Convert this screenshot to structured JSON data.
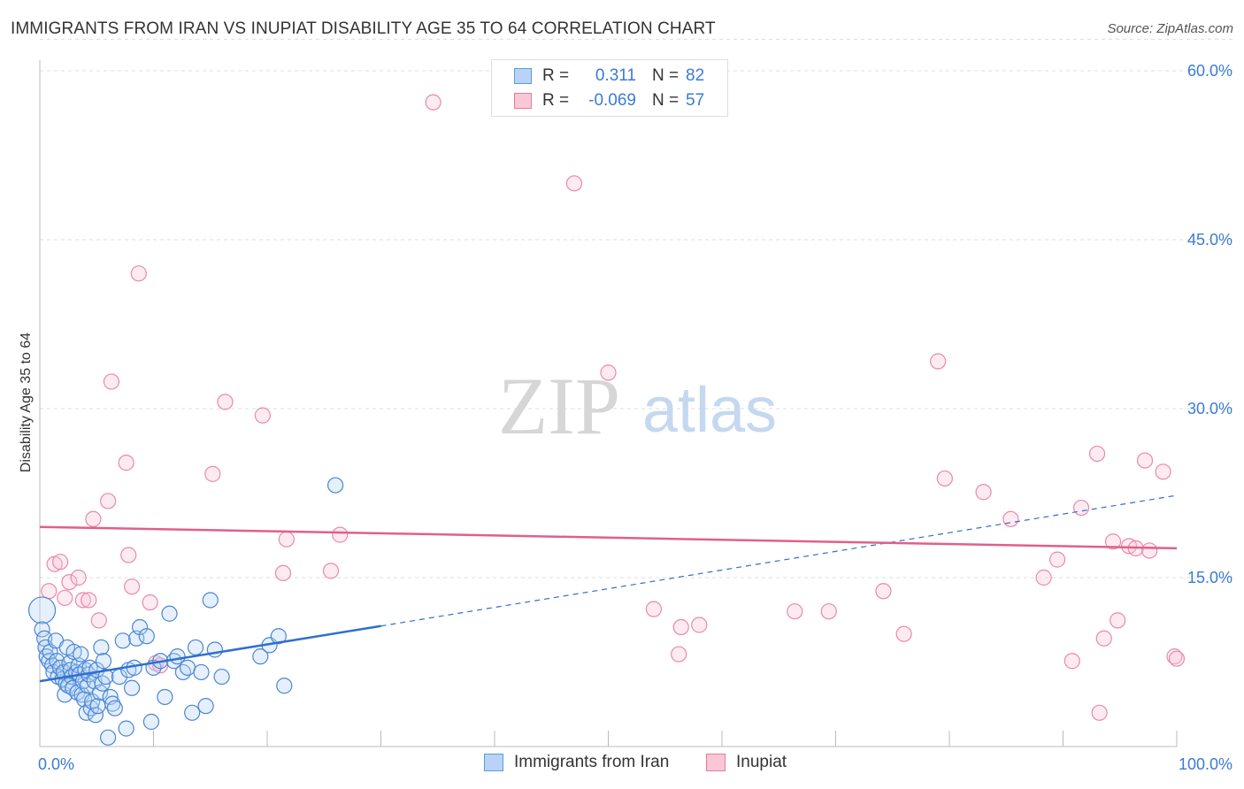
{
  "title": "IMMIGRANTS FROM IRAN VS INUPIAT DISABILITY AGE 35 TO 64 CORRELATION CHART",
  "source": "Source: ZipAtlas.com",
  "watermark": {
    "zip": "ZIP",
    "atlas": "atlas"
  },
  "legend": {
    "r_label": "R =",
    "n_label": "N =",
    "rows": [
      {
        "r": "0.311",
        "n": "82",
        "color": "#5b9be0",
        "fill": "#b8d3f5"
      },
      {
        "r": "-0.069",
        "n": "57",
        "color": "#e87aa0",
        "fill": "#f9c7d6"
      }
    ]
  },
  "colors": {
    "blue": "#4a86d4",
    "blue_line": "#2f6fcf",
    "pink": "#e88aa8",
    "pink_line": "#e0608a",
    "tick_text": "#3a7bd5"
  },
  "chart_data": {
    "type": "scatter",
    "title": "IMMIGRANTS FROM IRAN VS INUPIAT DISABILITY AGE 35 TO 64 CORRELATION CHART",
    "xlabel": "",
    "ylabel": "Disability Age 35 to 64",
    "xlim": [
      0,
      100
    ],
    "ylim": [
      0,
      63
    ],
    "x_tick_labels": [
      "0.0%",
      "100.0%"
    ],
    "y_ticks": [
      15,
      30,
      45,
      60
    ],
    "y_tick_labels": [
      "15.0%",
      "30.0%",
      "45.0%",
      "60.0%"
    ],
    "grid": true,
    "legend_position": "top-center",
    "series": [
      {
        "name": "Immigrants from Iran",
        "r": 0.311,
        "n": 82,
        "trend": {
          "x0": 0,
          "y0": 5.8,
          "x1": 30,
          "y1": 10.7,
          "dashed_to": {
            "x": 100,
            "y": 22.3
          }
        },
        "points": [
          [
            0.2,
            12.1
          ],
          [
            0.2,
            10.4
          ],
          [
            0.4,
            9.6
          ],
          [
            0.5,
            8.8
          ],
          [
            0.6,
            8.0
          ],
          [
            0.8,
            7.6
          ],
          [
            0.9,
            8.4
          ],
          [
            1.1,
            7.2
          ],
          [
            1.2,
            6.6
          ],
          [
            1.4,
            9.4
          ],
          [
            1.5,
            7.6
          ],
          [
            1.6,
            6.2
          ],
          [
            1.8,
            7.0
          ],
          [
            2.0,
            6.0
          ],
          [
            2.1,
            6.6
          ],
          [
            2.2,
            4.6
          ],
          [
            2.3,
            5.6
          ],
          [
            2.4,
            8.8
          ],
          [
            2.5,
            5.4
          ],
          [
            2.6,
            7.4
          ],
          [
            2.7,
            6.8
          ],
          [
            2.8,
            6.2
          ],
          [
            2.9,
            5.2
          ],
          [
            3.0,
            8.4
          ],
          [
            3.2,
            6.6
          ],
          [
            3.3,
            4.8
          ],
          [
            3.4,
            7.2
          ],
          [
            3.5,
            6.4
          ],
          [
            3.6,
            8.2
          ],
          [
            3.7,
            4.6
          ],
          [
            3.8,
            5.8
          ],
          [
            3.9,
            4.2
          ],
          [
            4.0,
            6.8
          ],
          [
            4.1,
            3.0
          ],
          [
            4.2,
            5.4
          ],
          [
            4.3,
            6.4
          ],
          [
            4.4,
            7.0
          ],
          [
            4.5,
            3.4
          ],
          [
            4.6,
            4.0
          ],
          [
            4.8,
            5.8
          ],
          [
            4.9,
            2.8
          ],
          [
            5.0,
            6.8
          ],
          [
            5.1,
            3.6
          ],
          [
            5.3,
            4.8
          ],
          [
            5.4,
            8.8
          ],
          [
            5.5,
            5.6
          ],
          [
            5.6,
            7.6
          ],
          [
            5.8,
            6.2
          ],
          [
            6.0,
            0.8
          ],
          [
            6.2,
            4.4
          ],
          [
            6.4,
            3.8
          ],
          [
            6.6,
            3.4
          ],
          [
            7.0,
            6.2
          ],
          [
            7.3,
            9.4
          ],
          [
            7.6,
            1.6
          ],
          [
            7.8,
            6.8
          ],
          [
            8.1,
            5.2
          ],
          [
            8.3,
            7.0
          ],
          [
            8.5,
            9.6
          ],
          [
            8.8,
            10.6
          ],
          [
            9.4,
            9.8
          ],
          [
            9.8,
            2.2
          ],
          [
            10.0,
            7.0
          ],
          [
            10.6,
            7.6
          ],
          [
            11.0,
            4.4
          ],
          [
            11.4,
            11.8
          ],
          [
            11.8,
            7.6
          ],
          [
            12.1,
            8.0
          ],
          [
            12.6,
            6.6
          ],
          [
            13.0,
            7.0
          ],
          [
            13.4,
            3.0
          ],
          [
            13.7,
            8.8
          ],
          [
            14.2,
            6.6
          ],
          [
            14.6,
            3.6
          ],
          [
            15.4,
            8.6
          ],
          [
            15.0,
            13.0
          ],
          [
            16.0,
            6.2
          ],
          [
            19.4,
            8.0
          ],
          [
            20.2,
            9.0
          ],
          [
            21.0,
            9.8
          ],
          [
            21.5,
            5.4
          ],
          [
            26.0,
            23.2
          ]
        ]
      },
      {
        "name": "Inupiat",
        "r": -0.069,
        "n": 57,
        "trend": {
          "x0": 0,
          "y0": 19.5,
          "x1": 100,
          "y1": 17.6
        },
        "points": [
          [
            0.8,
            13.8
          ],
          [
            1.3,
            16.2
          ],
          [
            1.8,
            16.4
          ],
          [
            2.2,
            13.2
          ],
          [
            2.6,
            14.6
          ],
          [
            3.4,
            15.0
          ],
          [
            3.8,
            13.0
          ],
          [
            4.3,
            13.0
          ],
          [
            4.7,
            20.2
          ],
          [
            5.2,
            11.2
          ],
          [
            6.0,
            21.8
          ],
          [
            6.3,
            32.4
          ],
          [
            7.6,
            25.2
          ],
          [
            7.8,
            17.0
          ],
          [
            8.1,
            14.2
          ],
          [
            8.7,
            42.0
          ],
          [
            9.7,
            12.8
          ],
          [
            10.2,
            7.4
          ],
          [
            10.6,
            7.2
          ],
          [
            15.2,
            24.2
          ],
          [
            16.3,
            30.6
          ],
          [
            19.6,
            29.4
          ],
          [
            21.7,
            18.4
          ],
          [
            21.4,
            15.4
          ],
          [
            25.6,
            15.6
          ],
          [
            26.4,
            18.8
          ],
          [
            34.6,
            57.2
          ],
          [
            47.0,
            50.0
          ],
          [
            50.0,
            33.2
          ],
          [
            54.0,
            12.2
          ],
          [
            56.2,
            8.2
          ],
          [
            56.4,
            10.6
          ],
          [
            58.0,
            10.8
          ],
          [
            66.4,
            12.0
          ],
          [
            69.4,
            12.0
          ],
          [
            74.2,
            13.8
          ],
          [
            76.0,
            10.0
          ],
          [
            79.0,
            34.2
          ],
          [
            79.6,
            23.8
          ],
          [
            83.0,
            22.6
          ],
          [
            85.4,
            20.2
          ],
          [
            88.3,
            15.0
          ],
          [
            89.5,
            16.6
          ],
          [
            90.8,
            7.6
          ],
          [
            91.6,
            21.2
          ],
          [
            93.0,
            26.0
          ],
          [
            93.2,
            3.0
          ],
          [
            93.6,
            9.6
          ],
          [
            94.4,
            18.2
          ],
          [
            94.8,
            11.2
          ],
          [
            95.8,
            17.8
          ],
          [
            96.4,
            17.6
          ],
          [
            97.2,
            25.4
          ],
          [
            97.6,
            17.4
          ],
          [
            98.8,
            24.4
          ],
          [
            99.8,
            8.0
          ],
          [
            100.0,
            7.8
          ]
        ]
      }
    ]
  },
  "bottom_legend": [
    {
      "label": "Immigrants from Iran"
    },
    {
      "label": "Inupiat"
    }
  ]
}
